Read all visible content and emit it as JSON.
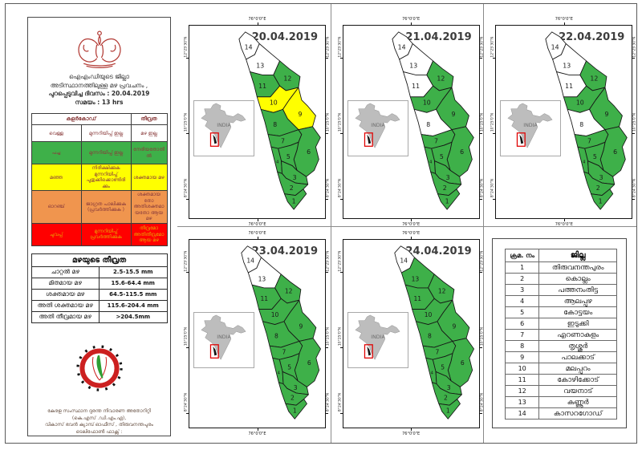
{
  "document": {
    "title_lines": [
      "ഐഎംഡിയുടെ ജില്ലാ",
      "അടിസ്ഥാനത്തിലുള്ള മഴ പ്രവചനം ,",
      "പുറപ്പെടുവിച്ച ദിവസം : 20.04.2019",
      "സമയം : 13 hrs"
    ],
    "issued_date": "20.04.2019",
    "issued_time": "13 hrs"
  },
  "legend": {
    "header_color_code": "കളർകോഡ്",
    "header_intensity": "തീവ്രത",
    "rows": [
      {
        "name": "വെള്ള",
        "advisory": "മുന്നറിയിപ്പ് ഇല്ല",
        "intensity": "മഴ ഇല്ല",
        "color": "#FFFFFF",
        "text_color": "#8a3c3c"
      },
      {
        "name": "പച്ച",
        "advisory": "മുന്നറിയിപ്പ് ഇല്ല",
        "intensity": "നേരിയതോതിൽ",
        "color": "#3EB049",
        "text_color": "#8a3c3c"
      },
      {
        "name": "മഞ്ഞ",
        "advisory": "നിരീക്ഷിക്കുക മുന്നറിയിപ്പ് പുതുക്കിക്കൊണ്ടിരിക്കും",
        "intensity": "ശക്തമായ മഴ",
        "color": "#FFFF00",
        "text_color": "#8a3c3c"
      },
      {
        "name": "ഓറഞ്ച്",
        "advisory": "ജാഗ്രത പാലിക്കുക (പ്രവർത്തിക്കുക )",
        "intensity": "ശക്തമായതോ അതിശക്തമായതോ ആയ മഴ",
        "color": "#F0954E",
        "text_color": "#8a3c3c"
      },
      {
        "name": "ചുവപ്പ്",
        "advisory": "മുന്നറിയിപ്പ് പ്രവർത്തിക്കുക",
        "intensity": "തീവ്രമോ അതിതീവ്രമോ ആയ മഴ",
        "color": "#FF0000",
        "text_color": "#e8a000"
      }
    ]
  },
  "rain_intensity": {
    "title": "മഴയുടെ തീവ്രത",
    "rows": [
      {
        "label": "ചാറ്റൽ മഴ",
        "range": "2.5-15.5 mm"
      },
      {
        "label": "മിതമായ മഴ",
        "range": "15.6-64.4 mm"
      },
      {
        "label": "ശക്തമായ മഴ",
        "range": "64.5-115.5 mm"
      },
      {
        "label": "അതി ശക്തമായ മഴ",
        "range": "115.6-204.4 mm"
      },
      {
        "label": "അതി തീവ്രമായ മഴ",
        "range": ">204.5mm"
      }
    ]
  },
  "footer_lines": [
    "കേരള സംസ്ഥാന ദുരന്ത നിവാരണ അതോറിറ്റി",
    "(കെ.എസ് .ഡി.എം.എ),",
    "വികാസ് ഭവൻ ക്യാമ്പ് ഓഫീസ് , തിരുവനന്തപുരം",
    "ടെലിഫോൺ ഫാക്സ് :"
  ],
  "map_common": {
    "lon_label": "76°0'0\"E",
    "lat_labels": [
      "12°25'30\"N",
      "10°25'0\"N",
      "8°24'30\"N"
    ],
    "inset_label": "INDIA",
    "colors": {
      "green": "#3EB049",
      "yellow": "#FFFF00",
      "white": "#FFFFFF"
    }
  },
  "maps": [
    {
      "date": "20.04.2019",
      "district_status": {
        "1": "green",
        "2": "green",
        "3": "green",
        "4": "green",
        "5": "green",
        "6": "green",
        "7": "green",
        "8": "green",
        "9": "yellow",
        "10": "yellow",
        "11": "green",
        "12": "green",
        "13": "white",
        "14": "white"
      }
    },
    {
      "date": "21.04.2019",
      "district_status": {
        "1": "green",
        "2": "green",
        "3": "green",
        "4": "green",
        "5": "green",
        "6": "green",
        "7": "green",
        "8": "white",
        "9": "green",
        "10": "green",
        "11": "white",
        "12": "green",
        "13": "white",
        "14": "white"
      }
    },
    {
      "date": "22.04.2019",
      "district_status": {
        "1": "green",
        "2": "green",
        "3": "green",
        "4": "green",
        "5": "green",
        "6": "green",
        "7": "green",
        "8": "white",
        "9": "green",
        "10": "green",
        "11": "white",
        "12": "green",
        "13": "white",
        "14": "white"
      }
    },
    {
      "date": "23.04.2019",
      "district_status": {
        "1": "green",
        "2": "green",
        "3": "green",
        "4": "green",
        "5": "green",
        "6": "green",
        "7": "green",
        "8": "green",
        "9": "green",
        "10": "green",
        "11": "green",
        "12": "green",
        "13": "white",
        "14": "white"
      }
    },
    {
      "date": "24.04.2019",
      "district_status": {
        "1": "green",
        "2": "green",
        "3": "green",
        "4": "green",
        "5": "green",
        "6": "green",
        "7": "green",
        "8": "green",
        "9": "green",
        "10": "green",
        "11": "green",
        "12": "green",
        "13": "green",
        "14": "white"
      }
    }
  ],
  "district_table": {
    "col_serial": "ക്രമ. നം",
    "col_district": "ജില്ല",
    "rows": [
      {
        "no": "1",
        "name": "തിരുവനന്തപുരം"
      },
      {
        "no": "2",
        "name": "കൊല്ലം"
      },
      {
        "no": "3",
        "name": "പത്തനംതിട്ട"
      },
      {
        "no": "4",
        "name": "ആലപ്പുഴ"
      },
      {
        "no": "5",
        "name": "കോട്ടയം"
      },
      {
        "no": "6",
        "name": "ഇടുക്കി"
      },
      {
        "no": "7",
        "name": "എറണാകുളം"
      },
      {
        "no": "8",
        "name": "തൃശ്ശൂർ"
      },
      {
        "no": "9",
        "name": "പാലക്കാട്"
      },
      {
        "no": "10",
        "name": "മലപ്പുറം"
      },
      {
        "no": "11",
        "name": "കോഴിക്കോട്"
      },
      {
        "no": "12",
        "name": "വയനാട്"
      },
      {
        "no": "13",
        "name": "കണ്ണൂർ"
      },
      {
        "no": "14",
        "name": "കാസറഗോഡ്"
      }
    ]
  }
}
